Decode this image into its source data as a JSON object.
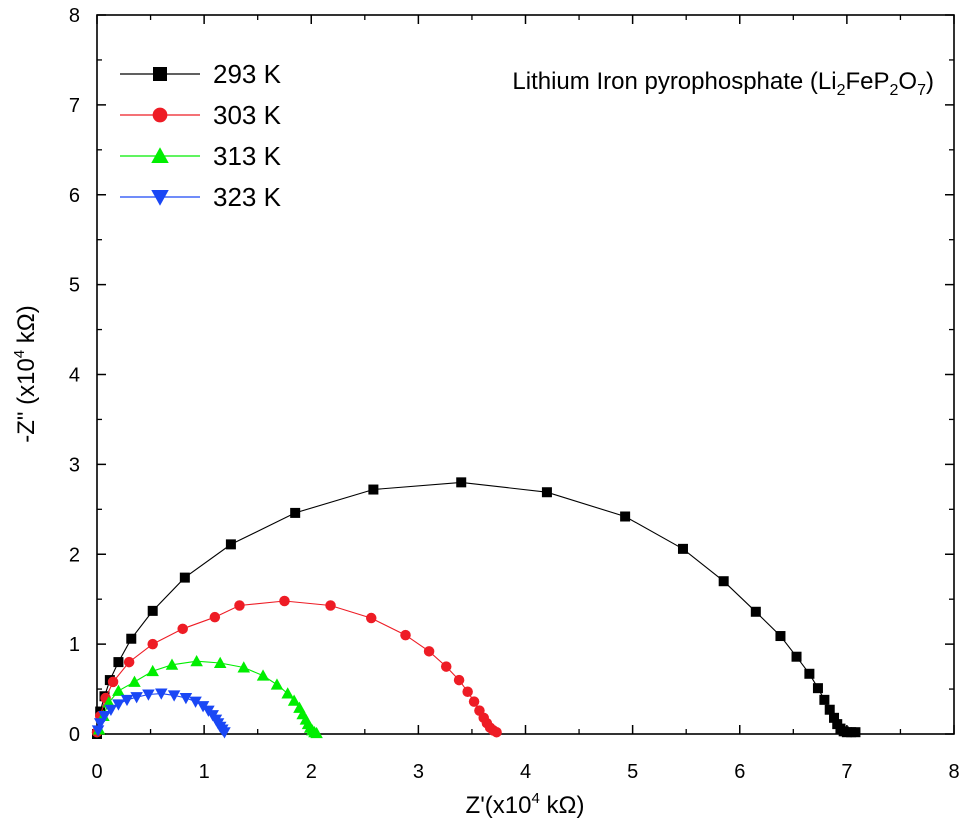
{
  "chart_data": {
    "type": "scatter",
    "title": "",
    "annotation": {
      "prefix": "Lithium Iron pyrophosphate (Li",
      "sub1": "2",
      "mid1": "FeP",
      "sub2": "2",
      "mid2": "O",
      "sub3": "7",
      "suffix": ")"
    },
    "xlabel": {
      "prefix": "Z'(x10",
      "sup": "4",
      "suffix": " kΩ)"
    },
    "ylabel": {
      "prefix": "-Z\" (x10",
      "sup": "4",
      "suffix": " kΩ)"
    },
    "xlim": [
      0,
      8
    ],
    "ylim": [
      0,
      8
    ],
    "x_ticks": [
      "0",
      "1",
      "2",
      "3",
      "4",
      "5",
      "6",
      "7",
      "8"
    ],
    "y_ticks": [
      "0",
      "1",
      "2",
      "3",
      "4",
      "5",
      "6",
      "7",
      "8"
    ],
    "grid": false,
    "legend_position": "top-left",
    "series": [
      {
        "name": "293 K",
        "color": "#000000",
        "marker": "square",
        "points": [
          [
            0,
            0
          ],
          [
            0.03,
            0.25
          ],
          [
            0.07,
            0.42
          ],
          [
            0.12,
            0.6
          ],
          [
            0.2,
            0.8
          ],
          [
            0.32,
            1.06
          ],
          [
            0.52,
            1.37
          ],
          [
            0.82,
            1.74
          ],
          [
            1.25,
            2.11
          ],
          [
            1.85,
            2.46
          ],
          [
            2.58,
            2.72
          ],
          [
            3.4,
            2.8
          ],
          [
            4.2,
            2.69
          ],
          [
            4.93,
            2.42
          ],
          [
            5.47,
            2.06
          ],
          [
            5.85,
            1.7
          ],
          [
            6.15,
            1.36
          ],
          [
            6.38,
            1.09
          ],
          [
            6.53,
            0.86
          ],
          [
            6.65,
            0.67
          ],
          [
            6.73,
            0.51
          ],
          [
            6.79,
            0.38
          ],
          [
            6.84,
            0.27
          ],
          [
            6.88,
            0.18
          ],
          [
            6.91,
            0.11
          ],
          [
            6.94,
            0.06
          ],
          [
            6.97,
            0.03
          ],
          [
            7.0,
            0.02
          ],
          [
            7.04,
            0.02
          ],
          [
            7.08,
            0.02
          ]
        ]
      },
      {
        "name": "303 K",
        "color": "#ee1c25",
        "marker": "circle",
        "points": [
          [
            0.0,
            0.02
          ],
          [
            0.03,
            0.2
          ],
          [
            0.08,
            0.4
          ],
          [
            0.15,
            0.58
          ],
          [
            0.3,
            0.8
          ],
          [
            0.52,
            1.0
          ],
          [
            0.8,
            1.17
          ],
          [
            1.1,
            1.3
          ],
          [
            1.33,
            1.43
          ],
          [
            1.75,
            1.48
          ],
          [
            2.18,
            1.43
          ],
          [
            2.56,
            1.29
          ],
          [
            2.88,
            1.1
          ],
          [
            3.1,
            0.92
          ],
          [
            3.26,
            0.75
          ],
          [
            3.38,
            0.6
          ],
          [
            3.46,
            0.47
          ],
          [
            3.52,
            0.36
          ],
          [
            3.57,
            0.26
          ],
          [
            3.61,
            0.18
          ],
          [
            3.64,
            0.12
          ],
          [
            3.67,
            0.07
          ],
          [
            3.7,
            0.04
          ],
          [
            3.73,
            0.02
          ]
        ]
      },
      {
        "name": "313 K",
        "color": "#00ee00",
        "marker": "triangle-up",
        "points": [
          [
            0.02,
            0.05
          ],
          [
            0.06,
            0.2
          ],
          [
            0.11,
            0.35
          ],
          [
            0.2,
            0.48
          ],
          [
            0.35,
            0.58
          ],
          [
            0.52,
            0.7
          ],
          [
            0.7,
            0.77
          ],
          [
            0.93,
            0.81
          ],
          [
            1.15,
            0.79
          ],
          [
            1.37,
            0.74
          ],
          [
            1.55,
            0.65
          ],
          [
            1.68,
            0.55
          ],
          [
            1.78,
            0.45
          ],
          [
            1.84,
            0.37
          ],
          [
            1.89,
            0.29
          ],
          [
            1.92,
            0.22
          ],
          [
            1.95,
            0.16
          ],
          [
            1.97,
            0.11
          ],
          [
            1.99,
            0.07
          ],
          [
            2.01,
            0.04
          ],
          [
            2.03,
            0.02
          ],
          [
            2.05,
            0.01
          ]
        ]
      },
      {
        "name": "323 K",
        "color": "#1a47f5",
        "marker": "triangle-down",
        "points": [
          [
            0.01,
            0.04
          ],
          [
            0.03,
            0.12
          ],
          [
            0.07,
            0.2
          ],
          [
            0.13,
            0.27
          ],
          [
            0.2,
            0.33
          ],
          [
            0.28,
            0.38
          ],
          [
            0.37,
            0.41
          ],
          [
            0.48,
            0.44
          ],
          [
            0.6,
            0.45
          ],
          [
            0.72,
            0.43
          ],
          [
            0.83,
            0.4
          ],
          [
            0.92,
            0.36
          ],
          [
            0.99,
            0.31
          ],
          [
            1.04,
            0.26
          ],
          [
            1.08,
            0.21
          ],
          [
            1.11,
            0.16
          ],
          [
            1.13,
            0.12
          ],
          [
            1.15,
            0.08
          ],
          [
            1.17,
            0.05
          ],
          [
            1.19,
            0.02
          ]
        ]
      }
    ]
  }
}
